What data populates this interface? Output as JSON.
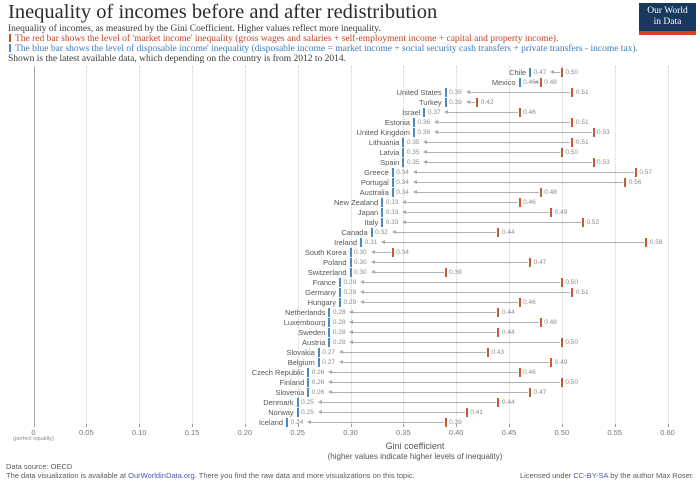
{
  "header": {
    "title": "Inequality of incomes before and after redistribution",
    "subtitle": "Inequality of incomes, as measured by the Gini Coefficient. Higher values reflect more inequality.",
    "red_note": "The red bar shows the level of 'market income' inequality (gross wages and salaries + self-employment income + capital and property income).",
    "blue_note": "The blue bar shows the level of disposable income' inequality (disposable income = market income + social security cash transfers + private transfers - income tax).",
    "data_note": "Shown is the latest available data, which depending on the country is from 2012 to 2014.",
    "logo_line1": "Our World",
    "logo_line2": "in Data"
  },
  "chart_data": {
    "type": "scatter",
    "variant": "dumbbell-arrow: arrow points from market-income Gini (red tick) leftward to disposable-income Gini (blue tick)",
    "title": "Inequality of incomes before and after redistribution",
    "xlabel": "Gini coefficient",
    "xlabel_sub": "(higher values indicate higher levels of inequality)",
    "xlim": [
      0,
      0.6
    ],
    "x_ticks": [
      0,
      0.05,
      0.1,
      0.15,
      0.2,
      0.25,
      0.3,
      0.35,
      0.4,
      0.45,
      0.5,
      0.55,
      0.6
    ],
    "zero_tick_label": "0",
    "zero_tick_sublabel": "(perfect equality)",
    "grid": "vertical dotted gridlines at 0.05 steps, solid line at 0",
    "legend_position": "none (series explained in colored subtitle lines)",
    "categories": [
      "Chile",
      "Mexico",
      "United States",
      "Turkey",
      "Israel",
      "Estonia",
      "United Kingdom",
      "Lithuania",
      "Latvia",
      "Spain",
      "Greece",
      "Portugal",
      "Australia",
      "New Zealand",
      "Japan",
      "Italy",
      "Canada",
      "Ireland",
      "South Korea",
      "Poland",
      "Switzerland",
      "France",
      "Germany",
      "Hungary",
      "Netherlands",
      "Luxembourg",
      "Sweden",
      "Austria",
      "Slovakia",
      "Belgium",
      "Czech Republic",
      "Finland",
      "Slovenia",
      "Denmark",
      "Norway",
      "Iceland"
    ],
    "series": [
      {
        "name": "Disposable income Gini (blue tick)",
        "color": "#4a8bc2",
        "values": [
          0.47,
          0.46,
          0.39,
          0.39,
          0.37,
          0.36,
          0.36,
          0.35,
          0.35,
          0.35,
          0.34,
          0.34,
          0.34,
          0.33,
          0.33,
          0.33,
          0.32,
          0.31,
          0.3,
          0.3,
          0.3,
          0.29,
          0.29,
          0.29,
          0.28,
          0.28,
          0.28,
          0.28,
          0.27,
          0.27,
          0.26,
          0.26,
          0.26,
          0.25,
          0.25,
          0.24
        ]
      },
      {
        "name": "Market income Gini (red tick)",
        "color": "#c75b35",
        "values": [
          0.5,
          0.48,
          0.51,
          0.42,
          0.46,
          0.51,
          0.53,
          0.51,
          0.5,
          0.53,
          0.57,
          0.56,
          0.48,
          0.46,
          0.49,
          0.52,
          0.44,
          0.58,
          0.34,
          0.47,
          0.39,
          0.5,
          0.51,
          0.46,
          0.44,
          0.48,
          0.44,
          0.5,
          0.43,
          0.49,
          0.46,
          0.5,
          0.47,
          0.44,
          0.41,
          0.39
        ]
      }
    ]
  },
  "footer": {
    "source": "Data source: OECD",
    "line_pre": "The data visualization is available at ",
    "line_link": "OurWorldinData.org",
    "line_post": ". There you find the raw data and more visualizations on this topic.",
    "license_pre": "Licensed under ",
    "license_link": "CC-BY-SA",
    "license_post": " by the author Max Roser."
  },
  "colors": {
    "red_series": "#c75b35",
    "blue_series": "#4a8bc2",
    "red_text": "#bf4526",
    "blue_text": "#3d7cb5",
    "arrow": "#b2b2b2",
    "value_label": "#8c8c8c",
    "country_label": "#565656",
    "logo_bg": "#16395d",
    "logo_strip": "#dc3d23",
    "link": "#4c5fa8"
  }
}
